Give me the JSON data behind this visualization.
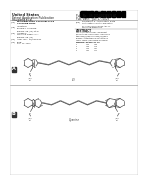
{
  "background_color": "#ffffff",
  "text_color": "#222222",
  "structure_color": "#444444",
  "header": {
    "title_left": "United States",
    "subtitle_left": "Patent Application Publication",
    "author": "Haugland et al.",
    "pub_no": "Pub. No.: US 2003/0134973 A1",
    "pub_date": "Pub. Date:   Jul. 17, 2003"
  },
  "fields": [
    [
      "(54)",
      "FLUORESCENT POLYMETHINE CYANINE DYES"
    ],
    [
      "(75)",
      "Inventors:  Richard P. Haugland, et al."
    ],
    [
      "(73)",
      "Assignee:  Molecular Probes, Inc."
    ],
    [
      "(21)",
      "Appl. No.: 10/020,561"
    ],
    [
      "(22)",
      "Filed:      Dec. 14, 2001"
    ]
  ],
  "abstract_title": "ABSTRACT",
  "abstract_text": "Fluorescent polymethine cyanine\ndyes comprising two benz[e]indole\nor benz[cd]indole groups connected\nby a polymethine chain are described.",
  "related_text": "Related U.S. Application Data",
  "label_A": "A",
  "label_B": "B",
  "compound_label_A": "(1)",
  "compound_label_B": "Cyanine",
  "barcode_color": "#000000",
  "divider_color": "#888888",
  "label_box_color": "#333333",
  "label_text_color": "#ffffff"
}
